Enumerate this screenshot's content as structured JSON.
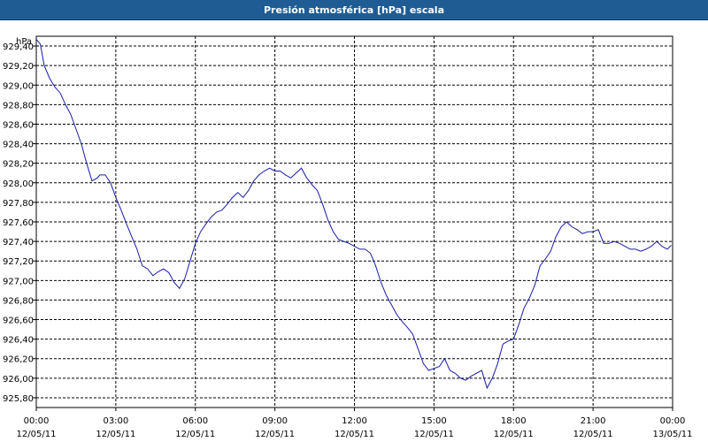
{
  "window": {
    "title": "Presión atmosférica [hPa] escala"
  },
  "chart_data": {
    "type": "line",
    "title": "Presión atmosférica [hPa] escala",
    "ylabel": "hPa",
    "xlabel": "",
    "ylim": [
      925.7,
      929.5
    ],
    "y_ticks": [
      "929,40",
      "929,20",
      "929,00",
      "928,80",
      "928,60",
      "928,40",
      "928,20",
      "928,00",
      "927,80",
      "927,60",
      "927,40",
      "927,20",
      "927,00",
      "926,80",
      "926,60",
      "926,40",
      "926,20",
      "926,00",
      "925,80"
    ],
    "y_tick_values": [
      929.4,
      929.2,
      929.0,
      928.8,
      928.6,
      928.4,
      928.2,
      928.0,
      927.8,
      927.6,
      927.4,
      927.2,
      927.0,
      926.8,
      926.6,
      926.4,
      926.2,
      926.0,
      925.8
    ],
    "x_ticks": [
      {
        "time": "00:00",
        "date": "12/05/11",
        "hour": 0
      },
      {
        "time": "03:00",
        "date": "12/05/11",
        "hour": 3
      },
      {
        "time": "06:00",
        "date": "12/05/11",
        "hour": 6
      },
      {
        "time": "09:00",
        "date": "12/05/11",
        "hour": 9
      },
      {
        "time": "12:00",
        "date": "12/05/11",
        "hour": 12
      },
      {
        "time": "15:00",
        "date": "12/05/11",
        "hour": 15
      },
      {
        "time": "18:00",
        "date": "12/05/11",
        "hour": 18
      },
      {
        "time": "21:00",
        "date": "12/05/11",
        "hour": 21
      },
      {
        "time": "00:00",
        "date": "13/05/11",
        "hour": 24
      }
    ],
    "xlim": [
      0,
      24
    ],
    "grid": true,
    "line_color": "#1a1aa8",
    "series": [
      {
        "x": [
          0,
          0.15,
          0.3,
          0.5,
          0.7,
          0.9,
          1.1,
          1.3,
          1.5,
          1.7,
          1.9,
          2.1,
          2.3,
          2.4,
          2.6,
          2.8,
          3.0,
          3.2,
          3.4,
          3.6,
          3.8,
          4.0,
          4.2,
          4.4,
          4.6,
          4.8,
          5.0,
          5.2,
          5.4,
          5.6,
          5.8,
          6.0,
          6.2,
          6.4,
          6.6,
          6.8,
          7.0,
          7.2,
          7.4,
          7.6,
          7.8,
          8.0,
          8.2,
          8.4,
          8.6,
          8.8,
          9.0,
          9.2,
          9.4,
          9.6,
          9.8,
          10.0,
          10.2,
          10.4,
          10.6,
          10.8,
          11.0,
          11.2,
          11.4,
          11.6,
          11.8,
          12.0,
          12.2,
          12.4,
          12.6,
          12.8,
          13.0,
          13.2,
          13.4,
          13.6,
          13.8,
          14.0,
          14.2,
          14.4,
          14.6,
          14.8,
          15.0,
          15.2,
          15.4,
          15.6,
          15.8,
          16.0,
          16.2,
          16.4,
          16.6,
          16.8,
          17.0,
          17.2,
          17.4,
          17.6,
          17.8,
          18.0,
          18.2,
          18.4,
          18.6,
          18.8,
          19.0,
          19.2,
          19.4,
          19.6,
          19.8,
          20.0,
          20.2,
          20.4,
          20.6,
          20.8,
          21.0,
          21.2,
          21.4,
          21.6,
          21.8,
          22.0,
          22.2,
          22.4,
          22.6,
          22.8,
          23.0,
          23.2,
          23.4,
          23.6,
          23.8,
          23.95
        ],
        "y": [
          929.47,
          929.42,
          929.2,
          929.07,
          928.98,
          928.92,
          928.8,
          928.7,
          928.55,
          928.4,
          928.2,
          928.02,
          928.05,
          928.08,
          928.08,
          928.0,
          927.85,
          927.72,
          927.58,
          927.45,
          927.32,
          927.15,
          927.12,
          927.05,
          927.09,
          927.12,
          927.08,
          926.98,
          926.92,
          927.02,
          927.2,
          927.38,
          927.5,
          927.58,
          927.65,
          927.7,
          927.72,
          927.78,
          927.85,
          927.9,
          927.85,
          927.92,
          928.02,
          928.08,
          928.12,
          928.15,
          928.12,
          928.12,
          928.08,
          928.05,
          928.1,
          928.15,
          928.05,
          927.98,
          927.92,
          927.78,
          927.62,
          927.5,
          927.42,
          927.4,
          927.38,
          927.35,
          927.32,
          927.32,
          927.28,
          927.15,
          926.98,
          926.85,
          926.75,
          926.65,
          926.58,
          926.52,
          926.45,
          926.3,
          926.15,
          926.08,
          926.1,
          926.12,
          926.2,
          926.08,
          926.05,
          926.0,
          925.98,
          926.02,
          926.05,
          926.08,
          925.9,
          926.0,
          926.15,
          926.35,
          926.38,
          926.4,
          926.55,
          926.72,
          926.82,
          926.95,
          927.15,
          927.22,
          927.3,
          927.45,
          927.55,
          927.6,
          927.55,
          927.52,
          927.48,
          927.5,
          927.5,
          927.52,
          927.38,
          927.38,
          927.4,
          927.38,
          927.35,
          927.32,
          927.32,
          927.3,
          927.32,
          927.35,
          927.4,
          927.35,
          927.32,
          927.36
        ],
        "name": ""
      }
    ]
  }
}
